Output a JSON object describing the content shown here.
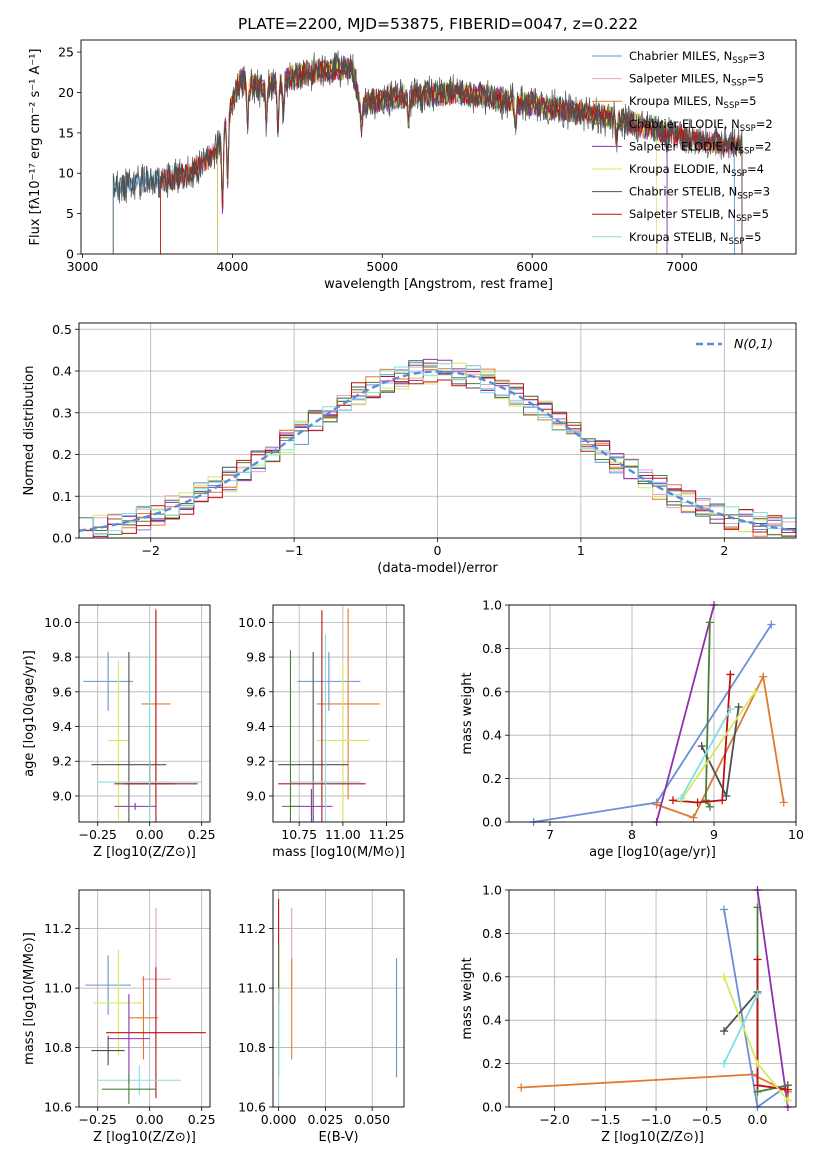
{
  "figure_title": "PLATE=2200, MJD=53875, FIBERID=0047, z=0.222",
  "series_colors": [
    "#6a8fd8",
    "#e8a0c8",
    "#e07a30",
    "#4a7f3a",
    "#9030b0",
    "#d8e860",
    "#505050",
    "#c01010",
    "#80e0e0"
  ],
  "chart_data": [
    {
      "id": "spectrum",
      "type": "line",
      "title": "PLATE=2200, MJD=53875, FIBERID=0047, z=0.222",
      "xlabel": "wavelength [Angstrom, rest frame]",
      "ylabel": "Flux [fλ10⁻¹⁷ erg cm⁻² s⁻¹ A⁻¹]",
      "xlim": [
        2990,
        7760
      ],
      "ylim": [
        0,
        26.5
      ],
      "xticks": [
        3000,
        4000,
        5000,
        6000,
        7000
      ],
      "yticks": [
        0,
        5,
        10,
        15,
        20,
        25
      ],
      "legend": "upper-right",
      "legend_entries": [
        "Chabrier MILES, N_SSP=3",
        "Salpeter MILES, N_SSP=5",
        "Kroupa MILES, N_SSP=5",
        "Chabrier ELODIE, N_SSP=2",
        "Salpeter ELODIE, N_SSP=2",
        "Kroupa ELODIE, N_SSP=4",
        "Chabrier STELIB, N_SSP=3",
        "Salpeter STELIB, N_SSP=5",
        "Kroupa STELIB, N_SSP=5"
      ],
      "continuum": {
        "x": [
          3200,
          3300,
          3500,
          3700,
          3900,
          3950,
          4050,
          4200,
          4500,
          4800,
          4850,
          5100,
          5500,
          6000,
          6500,
          6800,
          7000,
          7300
        ],
        "y": [
          8,
          8.7,
          9.1,
          9.7,
          13,
          16,
          21.5,
          20.5,
          22.5,
          23,
          18.5,
          19.5,
          20,
          18.5,
          17,
          15.5,
          14.5,
          13.5
        ]
      }
    },
    {
      "id": "residuals",
      "type": "line",
      "xlabel": "(data-model)/error",
      "ylabel": "Normed distribution",
      "xlim": [
        -2.5,
        2.5
      ],
      "ylim": [
        0,
        0.515
      ],
      "xticks": [
        -2,
        -1,
        0,
        1,
        2
      ],
      "yticks": [
        0.0,
        0.1,
        0.2,
        0.3,
        0.4,
        0.5
      ],
      "legend": "upper-right",
      "legend_entries": [
        "N(0,1)"
      ],
      "gaussian": {
        "mean": 0,
        "sigma": 1
      }
    },
    {
      "id": "age_vs_Z",
      "type": "scatter",
      "xlabel": "Z [log10(Z/Z⊙)]",
      "ylabel": "age  [log10(age/yr)]",
      "xlim": [
        -0.34,
        0.29
      ],
      "ylim": [
        8.85,
        10.1
      ],
      "xticks": [
        -0.25,
        0.0,
        0.25
      ],
      "yticks": [
        9.0,
        9.2,
        9.4,
        9.6,
        9.8,
        10.0
      ],
      "points": [
        {
          "x": -0.2,
          "xerr": 0.12,
          "y": 9.66,
          "yerr": 0.17,
          "color": 0
        },
        {
          "x": 0.03,
          "xerr": 0.07,
          "y": 9.53,
          "yerr": 0.55,
          "color": 2
        },
        {
          "x": -0.15,
          "xerr": 0.05,
          "y": 9.32,
          "yerr": 0.46,
          "color": 5
        },
        {
          "x": -0.1,
          "xerr": 0.18,
          "y": 9.18,
          "yerr": 0.65,
          "color": 6
        },
        {
          "x": 0.0,
          "xerr": 0.12,
          "y": 9.07,
          "yerr": 0.13,
          "color": 7
        },
        {
          "x": 0.03,
          "xerr": 0.2,
          "y": 9.07,
          "yerr": 1.0,
          "color": 7
        },
        {
          "x": -0.07,
          "xerr": 0.1,
          "y": 8.94,
          "yerr": 0.02,
          "color": 4
        },
        {
          "x": 0.0,
          "xerr": 0.25,
          "y": 9.08,
          "yerr": 0.8,
          "color": 8
        }
      ]
    },
    {
      "id": "age_vs_mass",
      "type": "scatter",
      "xlabel": "mass [log10(M/M⊙)]",
      "ylabel": "",
      "xlim": [
        10.6,
        11.35
      ],
      "ylim": [
        8.85,
        10.1
      ],
      "xticks": [
        10.75,
        11.0,
        11.25
      ],
      "yticks": [
        9.0,
        9.2,
        9.4,
        9.6,
        9.8,
        10.0
      ],
      "points": [
        {
          "x": 10.92,
          "xerr": 0.18,
          "y": 9.66,
          "yerr": 0.17,
          "color": 0
        },
        {
          "x": 11.03,
          "xerr": 0.18,
          "y": 9.53,
          "yerr": 0.55,
          "color": 2
        },
        {
          "x": 11.0,
          "xerr": 0.15,
          "y": 9.32,
          "yerr": 0.46,
          "color": 5
        },
        {
          "x": 10.83,
          "xerr": 0.2,
          "y": 9.18,
          "yerr": 0.65,
          "color": 6
        },
        {
          "x": 10.88,
          "xerr": 0.25,
          "y": 9.07,
          "yerr": 1.0,
          "color": 7
        },
        {
          "x": 10.82,
          "xerr": 0.12,
          "y": 8.94,
          "yerr": 0.1,
          "color": 4
        },
        {
          "x": 10.9,
          "xerr": 0.2,
          "y": 9.08,
          "yerr": 0.85,
          "color": 8
        },
        {
          "x": 10.7,
          "xerr": 0.05,
          "y": 8.94,
          "yerr": 0.9,
          "color": 3
        }
      ]
    },
    {
      "id": "weight_vs_age",
      "type": "line",
      "xlabel": "age  [log10(age/yr)]",
      "ylabel": "mass weight",
      "xlim": [
        6.5,
        10.0
      ],
      "ylim": [
        0.0,
        1.0
      ],
      "xticks": [
        7,
        8,
        9,
        10
      ],
      "yticks": [
        0.0,
        0.2,
        0.4,
        0.6,
        0.8,
        1.0
      ],
      "series": [
        {
          "color": 0,
          "x": [
            6.8,
            8.3,
            9.7
          ],
          "y": [
            0.0,
            0.09,
            0.91
          ]
        },
        {
          "color": 2,
          "x": [
            8.3,
            8.75,
            9.6,
            9.85
          ],
          "y": [
            0.08,
            0.02,
            0.67,
            0.09
          ]
        },
        {
          "color": 4,
          "x": [
            8.3,
            9.0
          ],
          "y": [
            0.0,
            1.0
          ]
        },
        {
          "color": 3,
          "x": [
            8.95,
            8.9,
            8.95
          ],
          "y": [
            0.92,
            0.1,
            0.07
          ]
        },
        {
          "color": 7,
          "x": [
            8.5,
            8.8,
            9.1,
            9.2
          ],
          "y": [
            0.1,
            0.09,
            0.1,
            0.68
          ]
        },
        {
          "color": 6,
          "x": [
            8.85,
            9.15,
            9.3
          ],
          "y": [
            0.35,
            0.12,
            0.53
          ]
        },
        {
          "color": 5,
          "x": [
            8.6,
            9.5
          ],
          "y": [
            0.1,
            0.6
          ]
        },
        {
          "color": 8,
          "x": [
            8.6,
            9.2
          ],
          "y": [
            0.11,
            0.52
          ]
        }
      ]
    },
    {
      "id": "mass_vs_Z",
      "type": "scatter",
      "xlabel": "Z [log10(Z/Z⊙)]",
      "ylabel": "mass [log10(M/M⊙)]",
      "xlim": [
        -0.34,
        0.29
      ],
      "ylim": [
        10.6,
        11.33
      ],
      "xticks": [
        -0.25,
        0.0,
        0.25
      ],
      "yticks": [
        10.6,
        10.8,
        11.0,
        11.2
      ],
      "points": [
        {
          "x": -0.2,
          "xerr": 0.11,
          "y": 11.01,
          "yerr": 0.1,
          "color": 0
        },
        {
          "x": 0.03,
          "xerr": 0.07,
          "y": 11.03,
          "yerr": 0.24,
          "color": 1
        },
        {
          "x": -0.03,
          "xerr": 0.07,
          "y": 10.9,
          "yerr": 0.14,
          "color": 2
        },
        {
          "x": -0.15,
          "xerr": 0.12,
          "y": 10.95,
          "yerr": 0.18,
          "color": 5
        },
        {
          "x": -0.2,
          "xerr": 0.08,
          "y": 10.79,
          "yerr": 0.05,
          "color": 6
        },
        {
          "x": 0.03,
          "xerr": 0.24,
          "y": 10.85,
          "yerr": 0.22,
          "color": 7
        },
        {
          "x": -0.1,
          "xerr": 0.1,
          "y": 10.83,
          "yerr": 0.15,
          "color": 4
        },
        {
          "x": -0.05,
          "xerr": 0.2,
          "y": 10.69,
          "yerr": 0.05,
          "color": 8
        },
        {
          "x": -0.1,
          "xerr": 0.13,
          "y": 10.66,
          "yerr": 0.05,
          "color": 3
        }
      ]
    },
    {
      "id": "mass_vs_EBV",
      "type": "scatter",
      "xlabel": "E(B-V)",
      "ylabel": "",
      "xlim": [
        -0.003,
        0.067
      ],
      "ylim": [
        10.6,
        11.33
      ],
      "xticks": [
        0.0,
        0.025,
        0.05
      ],
      "yticks": [
        10.6,
        10.8,
        11.0,
        11.2
      ],
      "vbars": [
        {
          "x": 0.0,
          "ymin": 10.95,
          "ymax": 11.3,
          "color": 7
        },
        {
          "x": 0.0,
          "ymin": 10.7,
          "ymax": 11.15,
          "color": 3
        },
        {
          "x": 0.0,
          "ymin": 10.6,
          "ymax": 11.0,
          "color": 8
        },
        {
          "x": 0.007,
          "ymin": 11.0,
          "ymax": 11.27,
          "color": 1
        },
        {
          "x": 0.007,
          "ymin": 10.76,
          "ymax": 11.1,
          "color": 2
        },
        {
          "x": 0.063,
          "ymin": 10.7,
          "ymax": 11.1,
          "color": 0
        }
      ]
    },
    {
      "id": "weight_vs_Z",
      "type": "line",
      "xlabel": "Z [log10(Z/Z⊙)]",
      "ylabel": "mass weight",
      "xlim": [
        -2.45,
        0.38
      ],
      "ylim": [
        0.0,
        1.0
      ],
      "xticks": [
        -2.0,
        -1.5,
        -1.0,
        -0.5,
        0.0
      ],
      "yticks": [
        0.0,
        0.2,
        0.4,
        0.6,
        0.8,
        1.0
      ],
      "series": [
        {
          "color": 2,
          "x": [
            -2.33,
            -0.05,
            0.3,
            0.3
          ],
          "y": [
            0.09,
            0.15,
            0.07,
            0.03
          ]
        },
        {
          "color": 0,
          "x": [
            -0.33,
            0.0,
            0.3
          ],
          "y": [
            0.91,
            0.0,
            0.1
          ]
        },
        {
          "color": 4,
          "x": [
            0.0,
            0.3
          ],
          "y": [
            1.0,
            0.0
          ]
        },
        {
          "color": 3,
          "x": [
            0.0,
            0.0,
            0.3
          ],
          "y": [
            0.92,
            0.07,
            0.1
          ]
        },
        {
          "color": 7,
          "x": [
            0.0,
            0.0,
            0.3
          ],
          "y": [
            0.68,
            0.1,
            0.08
          ]
        },
        {
          "color": 6,
          "x": [
            -0.33,
            0.0
          ],
          "y": [
            0.35,
            0.53
          ]
        },
        {
          "color": 5,
          "x": [
            -0.33,
            0.0,
            0.3
          ],
          "y": [
            0.6,
            0.2,
            0.03
          ]
        },
        {
          "color": 8,
          "x": [
            -0.33,
            0.0
          ],
          "y": [
            0.2,
            0.52
          ]
        }
      ]
    }
  ]
}
